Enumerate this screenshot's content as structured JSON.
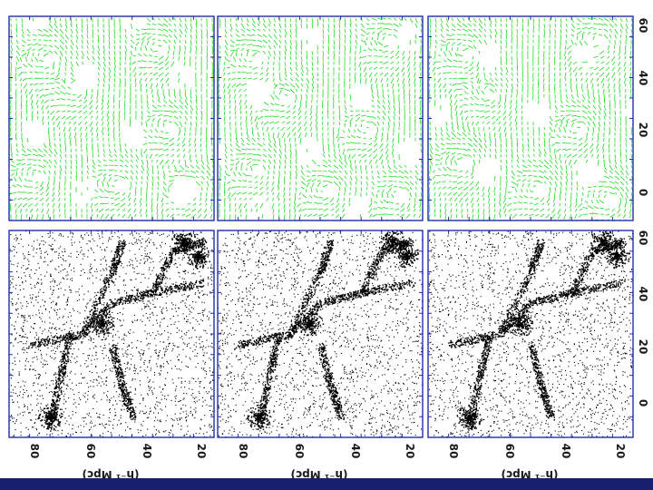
{
  "figure": {
    "x_tick_labels": [
      "80",
      "60",
      "40",
      "20"
    ],
    "y_tick_labels": [
      "0",
      "20",
      "40",
      "60"
    ],
    "axis_title": "(h⁻¹ Mpc)",
    "colors": {
      "frame": "#1f2fa8",
      "vectors": "#22dd22",
      "particles": "#000000",
      "bottom_band": "#18206e"
    }
  },
  "panels": [
    {
      "row": "vectors",
      "column": 1,
      "kind": "velocity-field",
      "icon": "vector-field-icon"
    },
    {
      "row": "vectors",
      "column": 2,
      "kind": "velocity-field",
      "icon": "vector-field-icon"
    },
    {
      "row": "vectors",
      "column": 3,
      "kind": "velocity-field",
      "icon": "vector-field-icon"
    },
    {
      "row": "particles",
      "column": 1,
      "kind": "particle-distribution",
      "icon": "particle-cloud-icon"
    },
    {
      "row": "particles",
      "column": 2,
      "kind": "particle-distribution",
      "icon": "particle-cloud-icon"
    },
    {
      "row": "particles",
      "column": 3,
      "kind": "particle-distribution",
      "icon": "particle-cloud-icon"
    }
  ]
}
